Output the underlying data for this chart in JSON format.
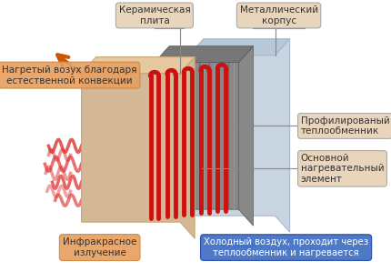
{
  "bg_color": "#ffffff",
  "labels": {
    "ceramic_plate": "Керамическая\nплита",
    "metal_case": "Металлический\nкорпус",
    "hot_air": "Нагретый возух благодаря\nестественной конвекции",
    "profiled_exchanger": "Профилированый\nтеплообменник",
    "main_element": "Основной\nнагревательный\nэлемент",
    "cold_air": "Холодный воздух, проходит через\nтеплообменник и нагревается",
    "infrared": "Инфракрасное\nизлучение"
  },
  "colors": {
    "ceramic_plate": "#d4b896",
    "ceramic_plate_top": "#e8c8a0",
    "metal_case": "#c8d4e0",
    "metal_case_top": "#b8c8d8",
    "corrugated": "#888888",
    "corrugated_top": "#777777",
    "heating_element": "#cc1111",
    "label_box_beige": "#e8d5bb",
    "label_box_blue": "#4472c4",
    "label_box_orange": "#e8a060",
    "infrared_waves": "#dd3333",
    "hot_air_arrow": "#cc5500",
    "cold_air_arrow": "#4472c4",
    "text_dark": "#333333",
    "text_white": "#ffffff",
    "leader_line": "#888888",
    "edge_ceramic": "#c8a878",
    "edge_metal": "#aab8cc",
    "edge_corr": "#555555",
    "ridge_light": "#999999",
    "ridge_dark": "#666666"
  },
  "tube_positions": [
    175,
    198,
    221,
    244,
    267
  ],
  "wave_params": [
    [
      75,
      160,
      7,
      18,
      2.5,
      0.8,
      2.5
    ],
    [
      75,
      180,
      8,
      20,
      2.5,
      0.7,
      2.5
    ],
    [
      75,
      200,
      7,
      16,
      2.5,
      0.75,
      2.5
    ],
    [
      75,
      220,
      6,
      18,
      2.0,
      0.65,
      2.5
    ],
    [
      60,
      170,
      6,
      15,
      2.0,
      0.5,
      2.5
    ],
    [
      60,
      190,
      7,
      17,
      2.0,
      0.5,
      2.5
    ],
    [
      60,
      210,
      6,
      16,
      2.0,
      0.45,
      2.5
    ]
  ]
}
